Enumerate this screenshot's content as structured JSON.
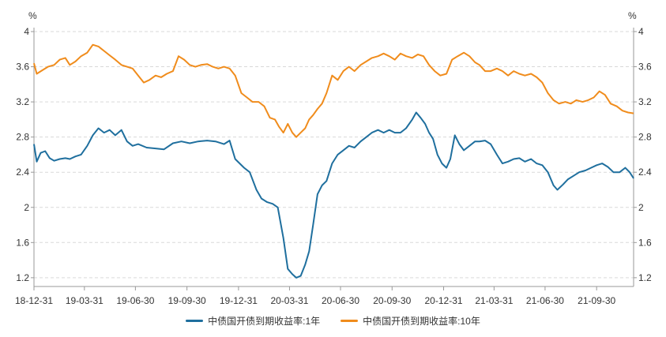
{
  "chart_data": {
    "type": "line",
    "y_unit_left": "%",
    "y_unit_right": "%",
    "ylim": [
      1.1,
      4.0
    ],
    "y_ticks": [
      "1.2",
      "1.6",
      "2",
      "2.4",
      "2.8",
      "3.2",
      "3.6",
      "4"
    ],
    "x_ticks": [
      "18-12-31",
      "19-03-31",
      "19-06-30",
      "19-09-30",
      "19-12-31",
      "20-03-31",
      "20-06-30",
      "20-09-30",
      "20-12-31",
      "21-03-31",
      "21-06-30",
      "21-09-30"
    ],
    "grid": "horizontal dashed",
    "legend_position": "bottom",
    "series": [
      {
        "name": "中债国开债到期收益率:1年",
        "color": "#1f6f9e",
        "points": [
          [
            "2018-12-31",
            2.72
          ],
          [
            "2019-01-05",
            2.52
          ],
          [
            "2019-01-12",
            2.62
          ],
          [
            "2019-01-20",
            2.64
          ],
          [
            "2019-01-28",
            2.56
          ],
          [
            "2019-02-05",
            2.53
          ],
          [
            "2019-02-15",
            2.55
          ],
          [
            "2019-02-25",
            2.56
          ],
          [
            "2019-03-05",
            2.55
          ],
          [
            "2019-03-15",
            2.58
          ],
          [
            "2019-03-25",
            2.6
          ],
          [
            "2019-04-05",
            2.7
          ],
          [
            "2019-04-15",
            2.82
          ],
          [
            "2019-04-25",
            2.9
          ],
          [
            "2019-05-05",
            2.85
          ],
          [
            "2019-05-15",
            2.88
          ],
          [
            "2019-05-25",
            2.82
          ],
          [
            "2019-06-05",
            2.88
          ],
          [
            "2019-06-15",
            2.75
          ],
          [
            "2019-06-25",
            2.7
          ],
          [
            "2019-07-05",
            2.72
          ],
          [
            "2019-07-20",
            2.68
          ],
          [
            "2019-08-05",
            2.67
          ],
          [
            "2019-08-20",
            2.66
          ],
          [
            "2019-09-05",
            2.73
          ],
          [
            "2019-09-20",
            2.75
          ],
          [
            "2019-10-05",
            2.73
          ],
          [
            "2019-10-20",
            2.75
          ],
          [
            "2019-11-05",
            2.76
          ],
          [
            "2019-11-20",
            2.75
          ],
          [
            "2019-12-05",
            2.72
          ],
          [
            "2019-12-15",
            2.76
          ],
          [
            "2019-12-25",
            2.55
          ],
          [
            "2020-01-10",
            2.45
          ],
          [
            "2020-01-20",
            2.4
          ],
          [
            "2020-02-01",
            2.2
          ],
          [
            "2020-02-10",
            2.1
          ],
          [
            "2020-02-20",
            2.06
          ],
          [
            "2020-03-01",
            2.04
          ],
          [
            "2020-03-10",
            2.0
          ],
          [
            "2020-03-20",
            1.65
          ],
          [
            "2020-03-28",
            1.3
          ],
          [
            "2020-04-05",
            1.24
          ],
          [
            "2020-04-12",
            1.2
          ],
          [
            "2020-04-20",
            1.22
          ],
          [
            "2020-04-28",
            1.35
          ],
          [
            "2020-05-05",
            1.5
          ],
          [
            "2020-05-12",
            1.8
          ],
          [
            "2020-05-20",
            2.15
          ],
          [
            "2020-05-28",
            2.25
          ],
          [
            "2020-06-05",
            2.3
          ],
          [
            "2020-06-15",
            2.5
          ],
          [
            "2020-06-25",
            2.6
          ],
          [
            "2020-07-05",
            2.65
          ],
          [
            "2020-07-15",
            2.7
          ],
          [
            "2020-07-25",
            2.68
          ],
          [
            "2020-08-05",
            2.75
          ],
          [
            "2020-08-15",
            2.8
          ],
          [
            "2020-08-25",
            2.85
          ],
          [
            "2020-09-05",
            2.88
          ],
          [
            "2020-09-15",
            2.85
          ],
          [
            "2020-09-25",
            2.88
          ],
          [
            "2020-10-05",
            2.85
          ],
          [
            "2020-10-15",
            2.85
          ],
          [
            "2020-10-25",
            2.9
          ],
          [
            "2020-11-05",
            3.0
          ],
          [
            "2020-11-12",
            3.08
          ],
          [
            "2020-11-20",
            3.02
          ],
          [
            "2020-11-28",
            2.95
          ],
          [
            "2020-12-05",
            2.85
          ],
          [
            "2020-12-12",
            2.78
          ],
          [
            "2020-12-20",
            2.6
          ],
          [
            "2020-12-28",
            2.5
          ],
          [
            "2021-01-05",
            2.45
          ],
          [
            "2021-01-12",
            2.55
          ],
          [
            "2021-01-20",
            2.82
          ],
          [
            "2021-01-28",
            2.72
          ],
          [
            "2021-02-05",
            2.65
          ],
          [
            "2021-02-15",
            2.7
          ],
          [
            "2021-02-25",
            2.75
          ],
          [
            "2021-03-05",
            2.75
          ],
          [
            "2021-03-15",
            2.76
          ],
          [
            "2021-03-25",
            2.72
          ],
          [
            "2021-04-05",
            2.6
          ],
          [
            "2021-04-15",
            2.5
          ],
          [
            "2021-04-25",
            2.52
          ],
          [
            "2021-05-05",
            2.55
          ],
          [
            "2021-05-15",
            2.56
          ],
          [
            "2021-05-25",
            2.52
          ],
          [
            "2021-06-05",
            2.55
          ],
          [
            "2021-06-15",
            2.5
          ],
          [
            "2021-06-25",
            2.48
          ],
          [
            "2021-07-05",
            2.4
          ],
          [
            "2021-07-15",
            2.25
          ],
          [
            "2021-07-22",
            2.2
          ],
          [
            "2021-08-01",
            2.26
          ],
          [
            "2021-08-10",
            2.32
          ],
          [
            "2021-08-20",
            2.36
          ],
          [
            "2021-08-30",
            2.4
          ],
          [
            "2021-09-10",
            2.42
          ],
          [
            "2021-09-20",
            2.45
          ],
          [
            "2021-09-30",
            2.48
          ],
          [
            "2021-10-10",
            2.5
          ],
          [
            "2021-10-20",
            2.46
          ],
          [
            "2021-10-30",
            2.4
          ],
          [
            "2021-11-10",
            2.4
          ],
          [
            "2021-11-20",
            2.45
          ],
          [
            "2021-11-28",
            2.4
          ],
          [
            "2021-12-05",
            2.33
          ]
        ]
      },
      {
        "name": "中债国开债到期收益率:10年",
        "color": "#f08c1c",
        "points": [
          [
            "2018-12-31",
            3.64
          ],
          [
            "2019-01-05",
            3.52
          ],
          [
            "2019-01-15",
            3.56
          ],
          [
            "2019-01-25",
            3.6
          ],
          [
            "2019-02-05",
            3.62
          ],
          [
            "2019-02-15",
            3.68
          ],
          [
            "2019-02-25",
            3.7
          ],
          [
            "2019-03-05",
            3.62
          ],
          [
            "2019-03-15",
            3.66
          ],
          [
            "2019-03-25",
            3.72
          ],
          [
            "2019-04-05",
            3.76
          ],
          [
            "2019-04-15",
            3.85
          ],
          [
            "2019-04-25",
            3.83
          ],
          [
            "2019-05-05",
            3.78
          ],
          [
            "2019-05-15",
            3.73
          ],
          [
            "2019-05-25",
            3.68
          ],
          [
            "2019-06-05",
            3.62
          ],
          [
            "2019-06-15",
            3.6
          ],
          [
            "2019-06-25",
            3.58
          ],
          [
            "2019-07-05",
            3.5
          ],
          [
            "2019-07-15",
            3.42
          ],
          [
            "2019-07-25",
            3.45
          ],
          [
            "2019-08-05",
            3.5
          ],
          [
            "2019-08-15",
            3.48
          ],
          [
            "2019-08-25",
            3.52
          ],
          [
            "2019-09-05",
            3.55
          ],
          [
            "2019-09-15",
            3.72
          ],
          [
            "2019-09-25",
            3.68
          ],
          [
            "2019-10-05",
            3.62
          ],
          [
            "2019-10-15",
            3.6
          ],
          [
            "2019-10-25",
            3.62
          ],
          [
            "2019-11-05",
            3.63
          ],
          [
            "2019-11-15",
            3.6
          ],
          [
            "2019-11-25",
            3.58
          ],
          [
            "2019-12-05",
            3.6
          ],
          [
            "2019-12-15",
            3.58
          ],
          [
            "2019-12-25",
            3.5
          ],
          [
            "2020-01-05",
            3.3
          ],
          [
            "2020-01-15",
            3.25
          ],
          [
            "2020-01-25",
            3.2
          ],
          [
            "2020-02-05",
            3.2
          ],
          [
            "2020-02-15",
            3.15
          ],
          [
            "2020-02-25",
            3.02
          ],
          [
            "2020-03-05",
            3.0
          ],
          [
            "2020-03-12",
            2.92
          ],
          [
            "2020-03-20",
            2.85
          ],
          [
            "2020-03-28",
            2.95
          ],
          [
            "2020-04-05",
            2.85
          ],
          [
            "2020-04-12",
            2.8
          ],
          [
            "2020-04-20",
            2.85
          ],
          [
            "2020-04-28",
            2.9
          ],
          [
            "2020-05-05",
            3.0
          ],
          [
            "2020-05-12",
            3.05
          ],
          [
            "2020-05-20",
            3.12
          ],
          [
            "2020-05-28",
            3.18
          ],
          [
            "2020-06-05",
            3.3
          ],
          [
            "2020-06-15",
            3.5
          ],
          [
            "2020-06-25",
            3.45
          ],
          [
            "2020-07-05",
            3.55
          ],
          [
            "2020-07-15",
            3.6
          ],
          [
            "2020-07-25",
            3.55
          ],
          [
            "2020-08-05",
            3.62
          ],
          [
            "2020-08-15",
            3.66
          ],
          [
            "2020-08-25",
            3.7
          ],
          [
            "2020-09-05",
            3.72
          ],
          [
            "2020-09-15",
            3.75
          ],
          [
            "2020-09-25",
            3.72
          ],
          [
            "2020-10-05",
            3.68
          ],
          [
            "2020-10-15",
            3.75
          ],
          [
            "2020-10-25",
            3.72
          ],
          [
            "2020-11-05",
            3.7
          ],
          [
            "2020-11-15",
            3.74
          ],
          [
            "2020-11-25",
            3.72
          ],
          [
            "2020-12-05",
            3.62
          ],
          [
            "2020-12-15",
            3.55
          ],
          [
            "2020-12-25",
            3.5
          ],
          [
            "2021-01-05",
            3.52
          ],
          [
            "2021-01-15",
            3.68
          ],
          [
            "2021-01-25",
            3.72
          ],
          [
            "2021-02-05",
            3.76
          ],
          [
            "2021-02-15",
            3.72
          ],
          [
            "2021-02-25",
            3.65
          ],
          [
            "2021-03-05",
            3.62
          ],
          [
            "2021-03-15",
            3.55
          ],
          [
            "2021-03-25",
            3.55
          ],
          [
            "2021-04-05",
            3.58
          ],
          [
            "2021-04-15",
            3.55
          ],
          [
            "2021-04-25",
            3.5
          ],
          [
            "2021-05-05",
            3.55
          ],
          [
            "2021-05-15",
            3.52
          ],
          [
            "2021-05-25",
            3.5
          ],
          [
            "2021-06-05",
            3.52
          ],
          [
            "2021-06-15",
            3.48
          ],
          [
            "2021-06-25",
            3.42
          ],
          [
            "2021-07-05",
            3.3
          ],
          [
            "2021-07-15",
            3.22
          ],
          [
            "2021-07-25",
            3.18
          ],
          [
            "2021-08-05",
            3.2
          ],
          [
            "2021-08-15",
            3.18
          ],
          [
            "2021-08-25",
            3.22
          ],
          [
            "2021-09-05",
            3.2
          ],
          [
            "2021-09-15",
            3.22
          ],
          [
            "2021-09-25",
            3.25
          ],
          [
            "2021-10-05",
            3.32
          ],
          [
            "2021-10-15",
            3.28
          ],
          [
            "2021-10-25",
            3.18
          ],
          [
            "2021-11-05",
            3.15
          ],
          [
            "2021-11-15",
            3.1
          ],
          [
            "2021-11-25",
            3.08
          ],
          [
            "2021-12-05",
            3.07
          ]
        ]
      }
    ]
  }
}
